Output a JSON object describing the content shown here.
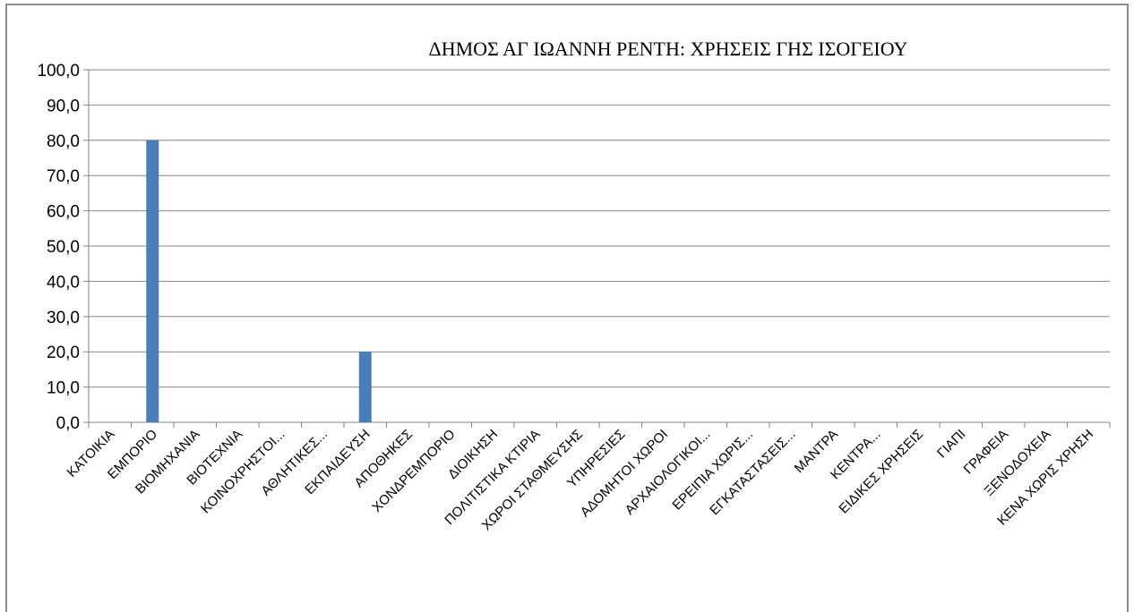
{
  "chart_data": {
    "type": "bar",
    "title": "ΔΗΜΟΣ ΑΓ ΙΩΑΝΝΗ ΡΕΝΤΗ:  ΧΡΗΣΕΙΣ ΓΗΣ ΙΣΟΓΕΙΟΥ",
    "xlabel": "",
    "ylabel": "",
    "ylim": [
      0,
      100
    ],
    "yticks": [
      "0,0",
      "10,0",
      "20,0",
      "30,0",
      "40,0",
      "50,0",
      "60,0",
      "70,0",
      "80,0",
      "90,0",
      "100,0"
    ],
    "grid": true,
    "legend": "none",
    "bar_color": "#4a7ebb",
    "categories": [
      "ΚΑΤΟΙΚΙΑ",
      "ΕΜΠΟΡΙΟ",
      "ΒΙΟΜΗΧΑΝΙΑ",
      "ΒΙΟΤΕΧΝΙΑ",
      "ΚΟΙΝΟΧΡΗΣΤΟΙ...",
      "ΑΘΛΗΤΙΚΕΣ...",
      "ΕΚΠΑΙΔΕΥΣΗ",
      "ΑΠΟΘΗΚΕΣ",
      "ΧΟΝΔΡΕΜΠΟΡΙΟ",
      "ΔΙΟΙΚΗΣΗ",
      "ΠΟΛΙΤΙΣΤΙΚΑ ΚΤΙΡΙΑ",
      "ΧΩΡΟΙ ΣΤΑΘΜΕΥΣΗΣ",
      "ΥΠΗΡΕΣΙΕΣ",
      "ΑΔΟΜΗΤΟΙ ΧΩΡΟΙ",
      "ΑΡΧΑΙΟΛΟΓΙΚΟΙ...",
      "ΕΡΕΙΠΙΑ ΧΩΡΙΣ...",
      "ΕΓΚΑΤΑΣΤΑΣΕΙΣ...",
      "ΜΑΝΤΡΑ",
      "ΚΕΝΤΡΑ...",
      "ΕΙΔΙΚΕΣ ΧΡΗΣΕΙΣ",
      "ΓΙΑΠΙ",
      "ΓΡΑΦΕΙΑ",
      "ΞΕΝΟΔΟΧΕΙΑ",
      "ΚΕΝΑ ΧΩΡΙΣ ΧΡΗΣΗ"
    ],
    "values": [
      0,
      80,
      0,
      0,
      0,
      0,
      20,
      0,
      0,
      0,
      0,
      0,
      0,
      0,
      0,
      0,
      0,
      0,
      0,
      0,
      0,
      0,
      0,
      0
    ]
  }
}
